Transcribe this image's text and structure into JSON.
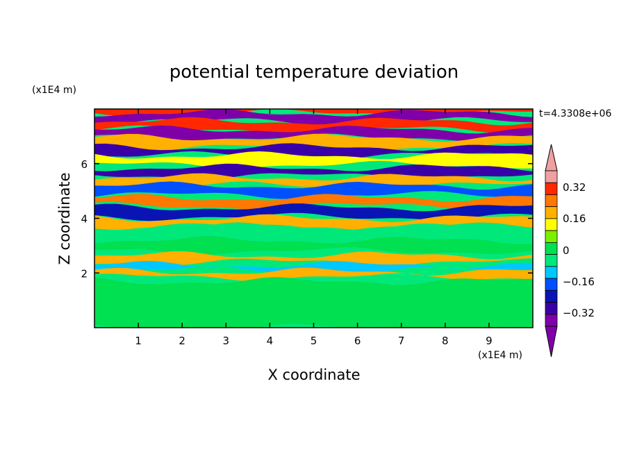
{
  "chart_data": {
    "type": "heatmap",
    "title": "potential temperature deviation",
    "xlabel": "X coordinate",
    "ylabel": "Z coordinate",
    "x_unit": "(x1E4 m)",
    "y_unit": "(x1E4 m)",
    "time_label": "t=4.3308e+06",
    "xlim": [
      0,
      10
    ],
    "ylim": [
      0,
      8
    ],
    "x_ticks": [
      "1",
      "2",
      "3",
      "4",
      "5",
      "6",
      "7",
      "8",
      "9"
    ],
    "y_ticks": [
      "2",
      "4",
      "6"
    ],
    "colorbar": {
      "levels": [
        -0.48,
        -0.4,
        -0.32,
        -0.24,
        -0.16,
        -0.08,
        0,
        0.08,
        0.16,
        0.24,
        0.32,
        0.4,
        0.48
      ],
      "tick_labels": [
        "0.32",
        "0.16",
        "0",
        "−0.16",
        "−0.32"
      ],
      "colors_low_to_high": [
        "#7f00a8",
        "#3a00a8",
        "#0a14b4",
        "#0050ff",
        "#00c8ff",
        "#00e87a",
        "#00e050",
        "#7cf000",
        "#ffff00",
        "#ffb000",
        "#ff7800",
        "#ff2800",
        "#f0a0a0"
      ],
      "under_color": "#7f00a8",
      "over_color": "#f0a0a0"
    },
    "bands": [
      {
        "z": 7.85,
        "h": 0.25,
        "v": 0.45
      },
      {
        "z": 7.55,
        "h": 0.3,
        "v": -0.45
      },
      {
        "z": 7.25,
        "h": 0.3,
        "v": 0.45
      },
      {
        "z": 6.95,
        "h": 0.3,
        "v": -0.45
      },
      {
        "z": 6.6,
        "h": 0.35,
        "v": 0.3
      },
      {
        "z": 6.3,
        "h": 0.3,
        "v": -0.4
      },
      {
        "z": 5.95,
        "h": 0.35,
        "v": 0.2
      },
      {
        "z": 5.55,
        "h": 0.3,
        "v": -0.35
      },
      {
        "z": 5.2,
        "h": 0.3,
        "v": 0.3
      },
      {
        "z": 4.85,
        "h": 0.35,
        "v": -0.2
      },
      {
        "z": 4.45,
        "h": 0.3,
        "v": 0.32
      },
      {
        "z": 4.05,
        "h": 0.35,
        "v": -0.25
      },
      {
        "z": 3.7,
        "h": 0.3,
        "v": 0.3
      },
      {
        "z": 3.3,
        "h": 0.4,
        "v": -0.08
      },
      {
        "z": 2.8,
        "h": 0.4,
        "v": 0.05
      },
      {
        "z": 2.4,
        "h": 0.25,
        "v": 0.3
      },
      {
        "z": 2.1,
        "h": 0.2,
        "v": -0.15
      },
      {
        "z": 1.85,
        "h": 0.2,
        "v": 0.25
      },
      {
        "z": 0.0,
        "h": 1.7,
        "v": 0.0
      }
    ]
  }
}
